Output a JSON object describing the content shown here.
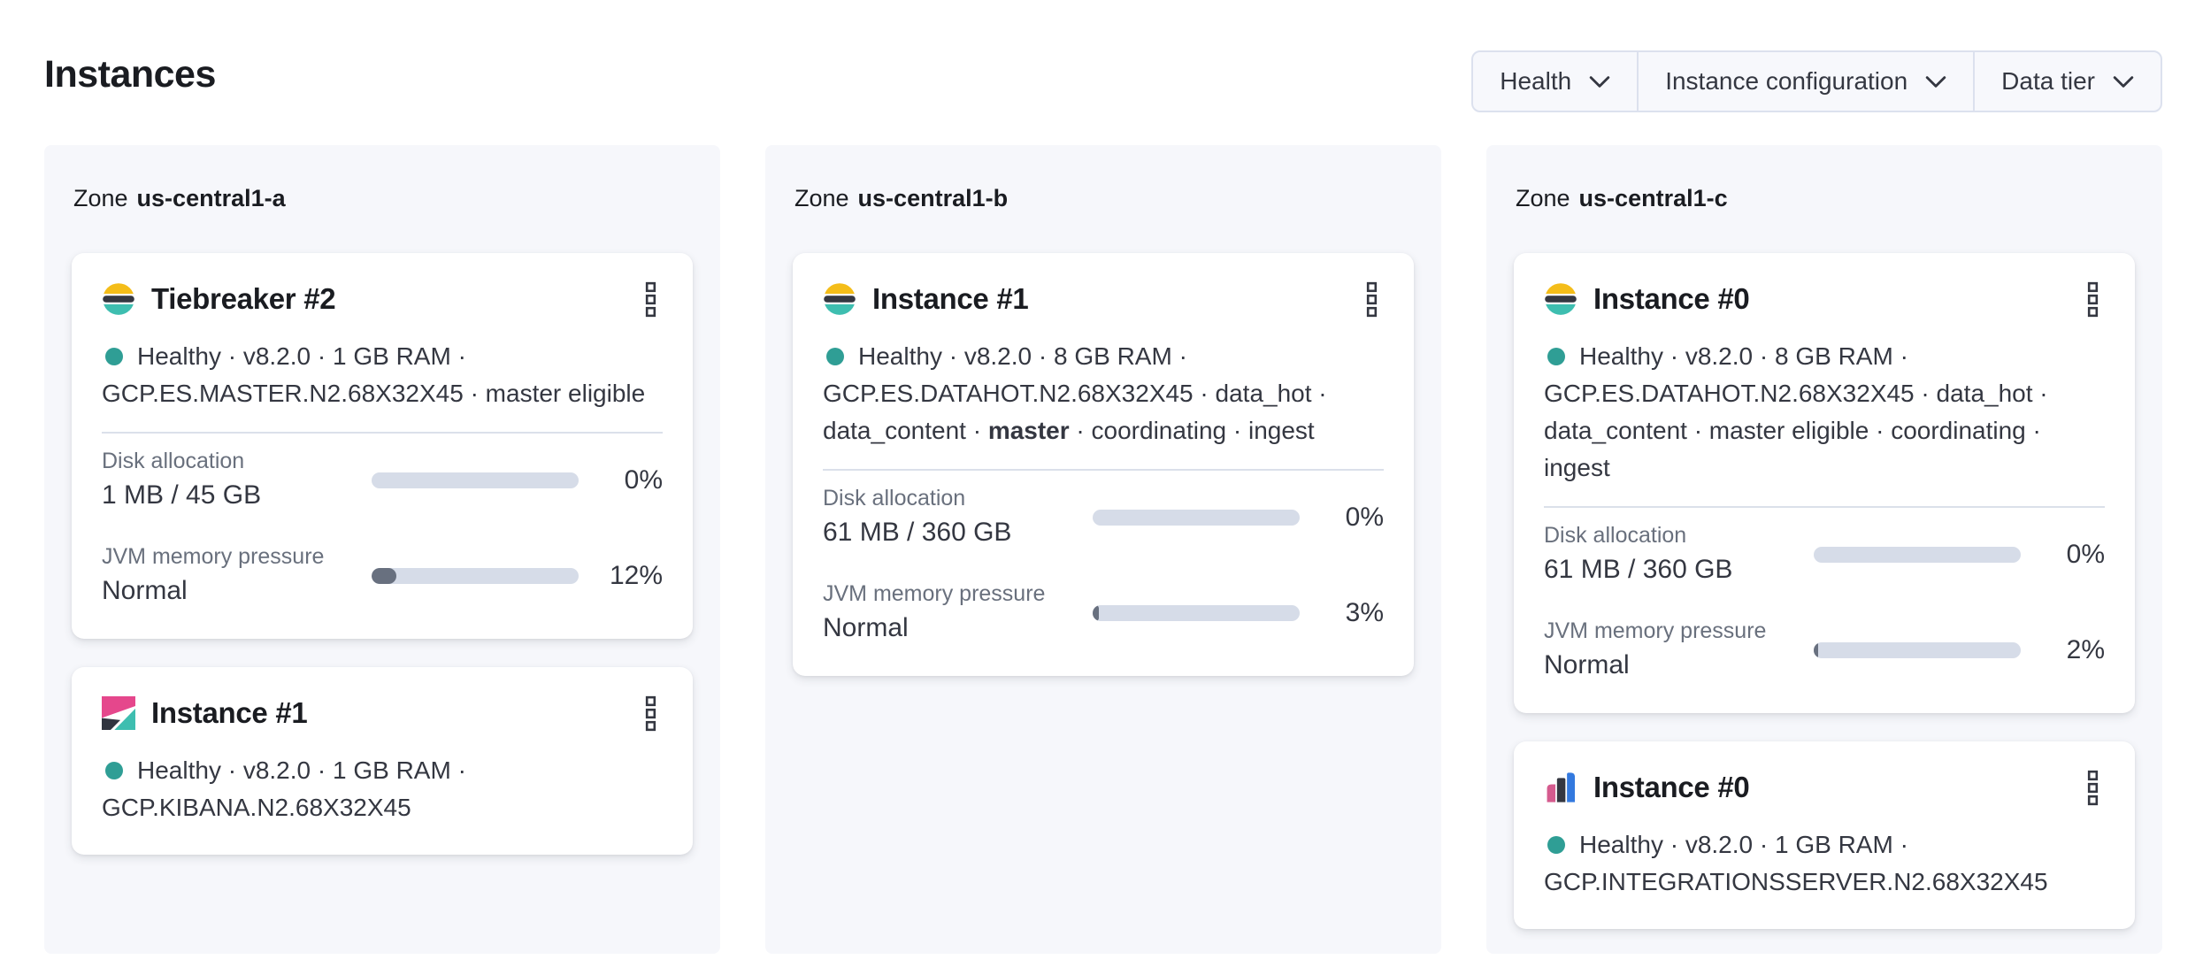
{
  "page": {
    "title": "Instances"
  },
  "filters": {
    "health": {
      "label": "Health",
      "icon": "chevron-down"
    },
    "instance_configuration": {
      "label": "Instance configuration",
      "icon": "chevron-down"
    },
    "data_tier": {
      "label": "Data tier",
      "icon": "chevron-down"
    }
  },
  "icons": {
    "card_menu": "boxes-vertical",
    "health_status": "status-dot"
  },
  "colors": {
    "healthy_dot": "#2f9e95",
    "bar_track": "#d6dce8",
    "bar_fill": "#68707f",
    "zone_panel_bg": "#f6f7fb",
    "elasticsearch_logo": [
      "#F4BD19",
      "#343741",
      "#3EBEB0"
    ],
    "kibana_logo": [
      "#E5478C",
      "#30343F",
      "#3EBEB0"
    ],
    "integrations_server_logo": [
      "#D55B8E",
      "#343741",
      "#3379DF"
    ]
  },
  "zones": [
    {
      "label_prefix": "Zone",
      "name": "us-central1-a",
      "cards": [
        {
          "logo": "elasticsearch-logo",
          "title": "Tiebreaker #2",
          "health": {
            "line1": "Healthy · v8.2.0 · 1 GB RAM ·",
            "line2": "GCP.ES.MASTER.N2.68X32X45 · master eligible"
          },
          "metrics": {
            "disk": {
              "label": "Disk allocation",
              "value": "1 MB / 45 GB",
              "percent": "0%",
              "fill": "0%"
            },
            "jvm": {
              "label": "JVM memory pressure",
              "value": "Normal",
              "percent": "12%",
              "fill": "12%"
            }
          }
        },
        {
          "logo": "kibana-logo",
          "title": "Instance #1",
          "health": {
            "line1": "Healthy · v8.2.0 · 1 GB RAM ·",
            "line2": "GCP.KIBANA.N2.68X32X45"
          }
        }
      ]
    },
    {
      "label_prefix": "Zone",
      "name": "us-central1-b",
      "cards": [
        {
          "logo": "elasticsearch-logo",
          "title": "Instance #1",
          "health": {
            "line1": "Healthy · v8.2.0 · 8 GB RAM ·",
            "line2": "GCP.ES.DATAHOT.N2.68X32X45 · data_hot ·",
            "line3_pre": "data_content · ",
            "line3_bold": "master",
            "line3_post": " · coordinating · ingest"
          },
          "metrics": {
            "disk": {
              "label": "Disk allocation",
              "value": "61 MB / 360 GB",
              "percent": "0%",
              "fill": "0%"
            },
            "jvm": {
              "label": "JVM memory pressure",
              "value": "Normal",
              "percent": "3%",
              "fill": "3%"
            }
          }
        }
      ]
    },
    {
      "label_prefix": "Zone",
      "name": "us-central1-c",
      "cards": [
        {
          "logo": "elasticsearch-logo",
          "title": "Instance #0",
          "health": {
            "line1": "Healthy · v8.2.0 · 8 GB RAM ·",
            "line2": "GCP.ES.DATAHOT.N2.68X32X45 · data_hot ·",
            "line3": "data_content · master eligible · coordinating · ingest"
          },
          "metrics": {
            "disk": {
              "label": "Disk allocation",
              "value": "61 MB / 360 GB",
              "percent": "0%",
              "fill": "0%"
            },
            "jvm": {
              "label": "JVM memory pressure",
              "value": "Normal",
              "percent": "2%",
              "fill": "2%"
            }
          }
        },
        {
          "logo": "integrations-server-logo",
          "title": "Instance #0",
          "health": {
            "line1": "Healthy · v8.2.0 · 1 GB RAM ·",
            "line2": "GCP.INTEGRATIONSSERVER.N2.68X32X45"
          }
        }
      ]
    }
  ]
}
